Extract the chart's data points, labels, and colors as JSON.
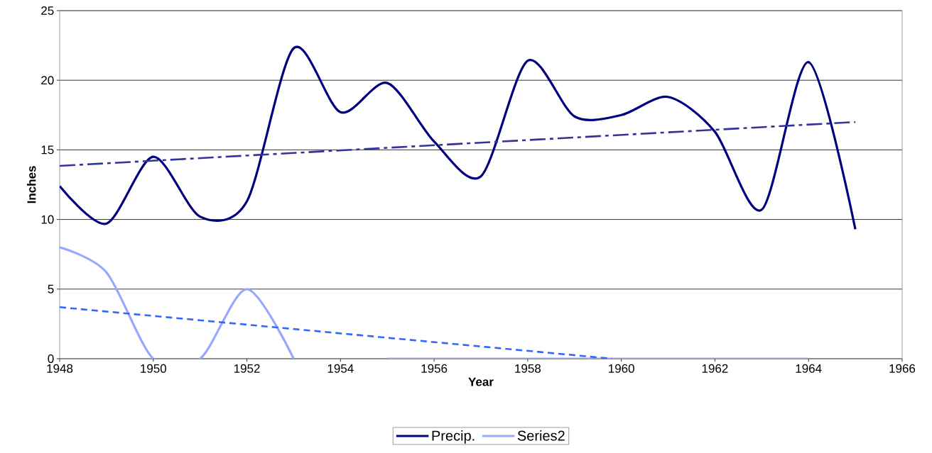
{
  "chart_data": {
    "type": "line",
    "xlabel": "Year",
    "ylabel": "Inches",
    "xlim": [
      1948,
      1966
    ],
    "xticks": [
      1948,
      1950,
      1952,
      1954,
      1956,
      1958,
      1960,
      1962,
      1964,
      1966
    ],
    "ylim": [
      0,
      25
    ],
    "yticks": [
      0,
      5,
      10,
      15,
      20,
      25
    ],
    "grid": "y",
    "legend": "bottom",
    "series": [
      {
        "name": "Precip.",
        "color": "#000080",
        "x": [
          1948,
          1949,
          1950,
          1951,
          1952,
          1953,
          1954,
          1955,
          1956,
          1957,
          1958,
          1959,
          1960,
          1961,
          1962,
          1963,
          1964,
          1965
        ],
        "values": [
          12.4,
          9.7,
          14.5,
          10.2,
          11.3,
          22.3,
          17.7,
          19.8,
          15.6,
          13.1,
          21.4,
          17.4,
          17.5,
          18.8,
          16.3,
          10.7,
          21.3,
          9.3
        ]
      },
      {
        "name": "Series2",
        "color": "#99a8ff",
        "x": [
          1948,
          1949,
          1950,
          1951,
          1952,
          1953,
          1954,
          1955,
          1956,
          1957,
          1958,
          1959,
          1960,
          1961,
          1962,
          1963,
          1964
        ],
        "values": [
          8,
          6.2,
          0,
          0,
          5,
          0,
          null,
          0,
          0,
          0,
          0,
          0,
          0,
          0,
          0,
          0,
          0
        ]
      },
      {
        "type": "line",
        "color": "#333399",
        "line_style": "dashdot",
        "x": [
          1948,
          1965
        ],
        "values": [
          13.85,
          17.0
        ]
      },
      {
        "type": "line",
        "color": "#3366ff",
        "line_style": "dashed",
        "x": [
          1948,
          1959.8
        ],
        "values": [
          3.7,
          0
        ]
      }
    ]
  }
}
